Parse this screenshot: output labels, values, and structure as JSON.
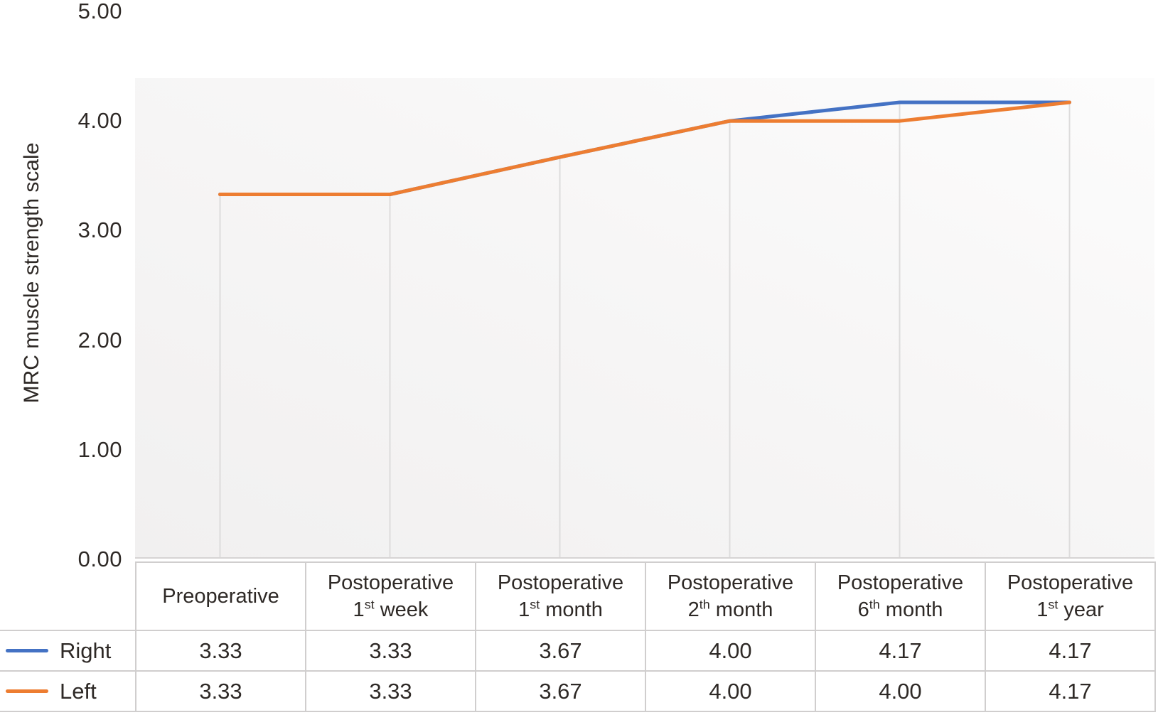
{
  "chart_data": {
    "type": "line",
    "title": "",
    "xlabel": "",
    "ylabel": "MRC muscle strength scale",
    "ylim": [
      0,
      5
    ],
    "yticks": [
      {
        "label": "5.00",
        "value": 5
      },
      {
        "label": "4.00",
        "value": 4
      },
      {
        "label": "3.00",
        "value": 3
      },
      {
        "label": "2.00",
        "value": 2
      },
      {
        "label": "1.00",
        "value": 1
      },
      {
        "label": "0.00",
        "value": 0
      }
    ],
    "grid": "vertical drop lines at category points only, no horizontal gridlines",
    "legend_position": "table rows at left of data table",
    "categories": [
      {
        "plain": "Preoperative",
        "line1": "Preoperative",
        "num": "",
        "sup": "",
        "rest": ""
      },
      {
        "plain": "Postoperative 1st week",
        "line1": "Postoperative",
        "num": "1",
        "sup": "st",
        "rest": " week"
      },
      {
        "plain": "Postoperative 1st month",
        "line1": "Postoperative",
        "num": "1",
        "sup": "st",
        "rest": " month"
      },
      {
        "plain": "Postoperative 2th month",
        "line1": "Postoperative",
        "num": "2",
        "sup": "th",
        "rest": " month"
      },
      {
        "plain": "Postoperative 6th month",
        "line1": "Postoperative",
        "num": "6",
        "sup": "th",
        "rest": " month"
      },
      {
        "plain": "Postoperative 1st year",
        "line1": "Postoperative",
        "num": "1",
        "sup": "st",
        "rest": " year"
      }
    ],
    "series": [
      {
        "name": "Right",
        "color": "#4472C4",
        "values": [
          3.33,
          3.33,
          3.67,
          4.0,
          4.17,
          4.17
        ],
        "display": [
          "3.33",
          "3.33",
          "3.67",
          "4.00",
          "4.17",
          "4.17"
        ]
      },
      {
        "name": "Left",
        "color": "#ED7D31",
        "values": [
          3.33,
          3.33,
          3.67,
          4.0,
          4.0,
          4.17
        ],
        "display": [
          "3.33",
          "3.33",
          "3.67",
          "4.00",
          "4.00",
          "4.17"
        ]
      }
    ]
  },
  "colors": {
    "series_right": "#4472C4",
    "series_left": "#ED7D31",
    "text": "#2e2926",
    "table_border": "#d0cece",
    "drop_line": "#dddcdc",
    "axis_line": "#d6d4d4",
    "plot_fill_dark": "#f1f0f0",
    "plot_fill_light": "#fcfcfc"
  }
}
